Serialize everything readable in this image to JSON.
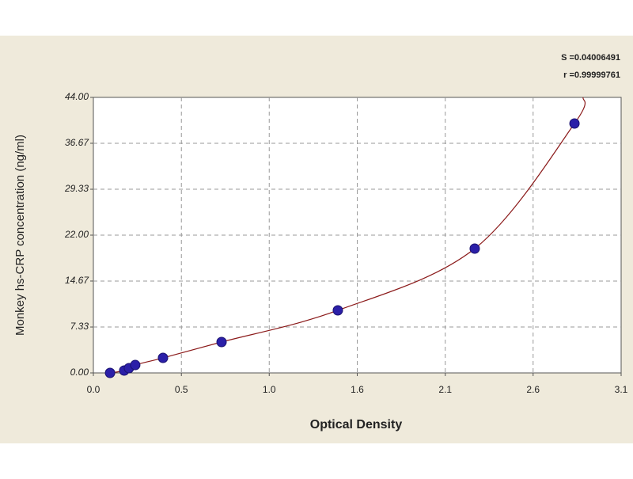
{
  "chart_data": {
    "type": "scatter",
    "x_label": "Optical Density",
    "y_label": "Monkey hs-CRP concentration (ng/ml)",
    "annotations": [
      "S =0.04006491",
      "r =0.99999761"
    ],
    "x": [
      0.098,
      0.181,
      0.209,
      0.246,
      0.409,
      0.753,
      1.436,
      2.24,
      2.826
    ],
    "values": [
      0,
      0.38,
      0.76,
      1.26,
      2.4,
      4.93,
      9.99,
      19.85,
      39.83
    ],
    "color": "#2b1fa8",
    "fit": {
      "x": [
        0.098,
        0.181,
        0.246,
        0.409,
        0.753,
        1.436,
        2.24,
        2.826,
        2.877
      ],
      "values": [
        0,
        0.38,
        1.26,
        2.4,
        4.93,
        9.99,
        19.85,
        39.83,
        44
      ],
      "color": "#8b1a1a"
    },
    "xlim": [
      0,
      3.1
    ],
    "ylim": [
      0,
      44
    ],
    "xticks": [
      {
        "value": 0,
        "label": "0.0"
      },
      {
        "value": 0.517,
        "label": "0.5"
      },
      {
        "value": 1.033,
        "label": "1.0"
      },
      {
        "value": 1.55,
        "label": "1.6"
      },
      {
        "value": 2.067,
        "label": "2.1"
      },
      {
        "value": 2.583,
        "label": "2.6"
      },
      3.1
    ],
    "yticks": [
      {
        "value": 0,
        "label": "0.00"
      },
      7.33,
      14.67,
      {
        "value": 22,
        "label": "22.00"
      },
      29.33,
      36.67,
      {
        "value": 44,
        "label": "44.00"
      }
    ],
    "grid": true
  }
}
